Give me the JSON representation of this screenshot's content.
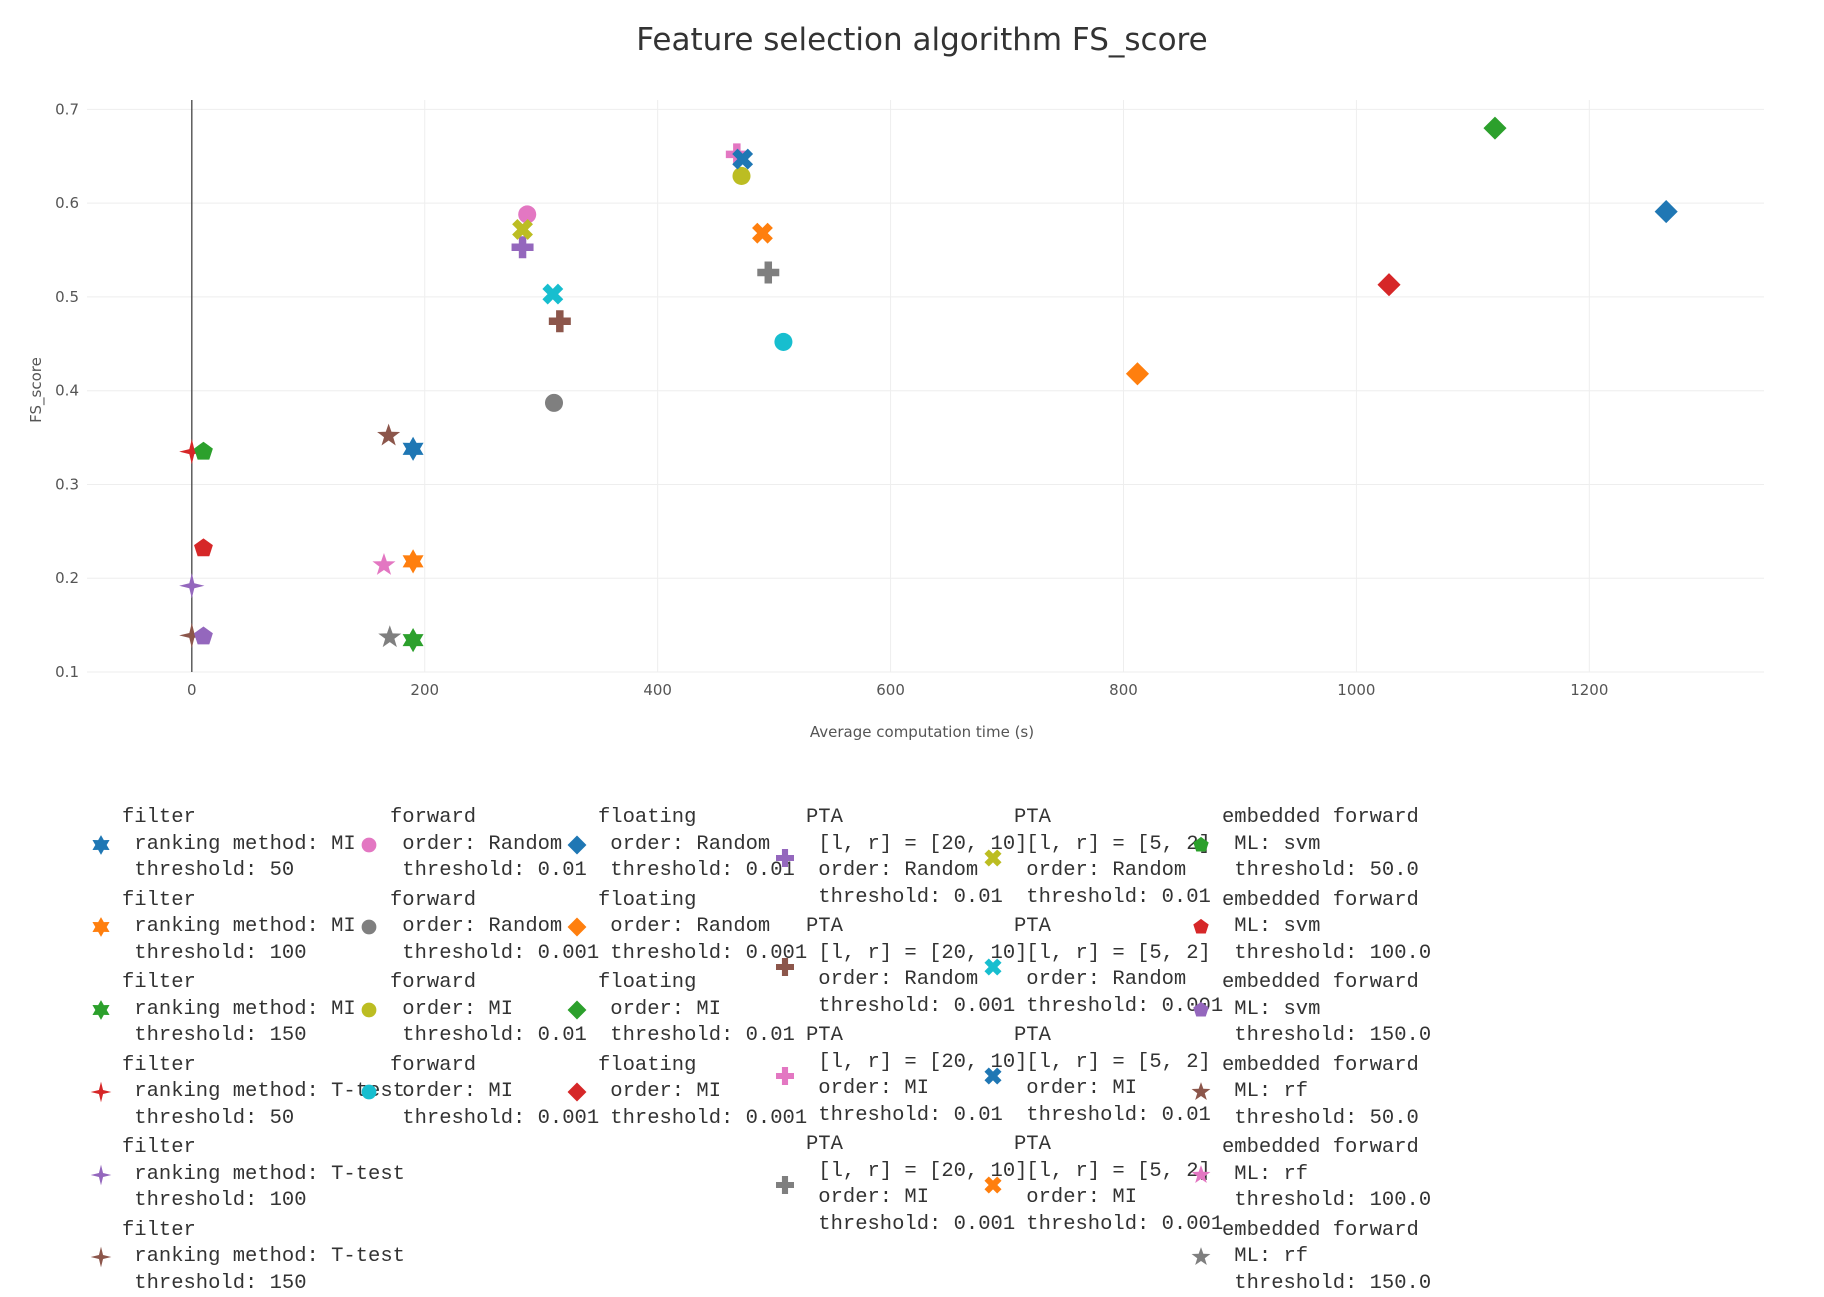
{
  "chart_data": {
    "type": "scatter",
    "title": "Feature selection algorithm FS_score",
    "xlabel": "Average computation time (s)",
    "ylabel": "FS_score",
    "xlim": [
      -90,
      1350
    ],
    "ylim": [
      0.1,
      0.71
    ],
    "x_ticks": [
      0,
      200,
      400,
      600,
      800,
      1000,
      1200
    ],
    "y_ticks": [
      0.1,
      0.2,
      0.3,
      0.4,
      0.5,
      0.6,
      0.7
    ],
    "grid": true,
    "zeroline_x": true,
    "legend_position": "bottom",
    "series": [
      {
        "name": "filter\n ranking method: MI\n threshold: 50",
        "symbol": "star-six",
        "color": "#1f77b4",
        "x": [
          190
        ],
        "y": [
          0.338
        ]
      },
      {
        "name": "filter\n ranking method: MI\n threshold: 100",
        "symbol": "star-six",
        "color": "#ff7f0e",
        "x": [
          190
        ],
        "y": [
          0.218
        ]
      },
      {
        "name": "filter\n ranking method: MI\n threshold: 150",
        "symbol": "star-six",
        "color": "#2ca02c",
        "x": [
          190
        ],
        "y": [
          0.134
        ]
      },
      {
        "name": "filter\n ranking method: T-test\n threshold: 50",
        "symbol": "star-four",
        "color": "#d62728",
        "x": [
          0
        ],
        "y": [
          0.335
        ]
      },
      {
        "name": "filter\n ranking method: T-test\n threshold: 100",
        "symbol": "star-four",
        "color": "#9467bd",
        "x": [
          0
        ],
        "y": [
          0.192
        ]
      },
      {
        "name": "filter\n ranking method: T-test\n threshold: 150",
        "symbol": "star-four",
        "color": "#8c564b",
        "x": [
          0
        ],
        "y": [
          0.139
        ]
      },
      {
        "name": "forward\n order: Random\n threshold: 0.01",
        "symbol": "circle",
        "color": "#e377c2",
        "x": [
          288
        ],
        "y": [
          0.588
        ]
      },
      {
        "name": "forward\n order: Random\n threshold: 0.001",
        "symbol": "circle",
        "color": "#7f7f7f",
        "x": [
          311
        ],
        "y": [
          0.387
        ]
      },
      {
        "name": "forward\n order: MI\n threshold: 0.01",
        "symbol": "circle",
        "color": "#bcbd22",
        "x": [
          472
        ],
        "y": [
          0.629
        ]
      },
      {
        "name": "forward\n order: MI\n threshold: 0.001",
        "symbol": "circle",
        "color": "#17becf",
        "x": [
          508
        ],
        "y": [
          0.452
        ]
      },
      {
        "name": "floating\n order: Random\n threshold: 0.01",
        "symbol": "diamond",
        "color": "#1f77b4",
        "x": [
          1266
        ],
        "y": [
          0.591
        ]
      },
      {
        "name": "floating\n order: Random\n threshold: 0.001",
        "symbol": "diamond",
        "color": "#ff7f0e",
        "x": [
          812
        ],
        "y": [
          0.418
        ]
      },
      {
        "name": "floating\n order: MI\n threshold: 0.01",
        "symbol": "diamond",
        "color": "#2ca02c",
        "x": [
          1119
        ],
        "y": [
          0.68
        ]
      },
      {
        "name": "floating\n order: MI\n threshold: 0.001",
        "symbol": "diamond",
        "color": "#d62728",
        "x": [
          1028
        ],
        "y": [
          0.513
        ]
      },
      {
        "name": "PTA\n [l, r] = [20, 10]\n order: Random\n threshold: 0.01",
        "symbol": "cross",
        "color": "#9467bd",
        "x": [
          284
        ],
        "y": [
          0.553
        ]
      },
      {
        "name": "PTA\n [l, r] = [20, 10]\n order: Random\n threshold: 0.001",
        "symbol": "cross",
        "color": "#8c564b",
        "x": [
          316
        ],
        "y": [
          0.474
        ]
      },
      {
        "name": "PTA\n [l, r] = [20, 10]\n order: MI\n threshold: 0.01",
        "symbol": "cross",
        "color": "#e377c2",
        "x": [
          468
        ],
        "y": [
          0.652
        ]
      },
      {
        "name": "PTA\n [l, r] = [20, 10]\n order: MI\n threshold: 0.001",
        "symbol": "cross",
        "color": "#7f7f7f",
        "x": [
          495
        ],
        "y": [
          0.526
        ]
      },
      {
        "name": "PTA\n [l, r] = [5, 2]\n order: Random\n threshold: 0.01",
        "symbol": "x",
        "color": "#bcbd22",
        "x": [
          284
        ],
        "y": [
          0.572
        ]
      },
      {
        "name": "PTA\n [l, r] = [5, 2]\n order: Random\n threshold: 0.001",
        "symbol": "x",
        "color": "#17becf",
        "x": [
          310
        ],
        "y": [
          0.503
        ]
      },
      {
        "name": "PTA\n [l, r] = [5, 2]\n order: MI\n threshold: 0.01",
        "symbol": "x",
        "color": "#1f77b4",
        "x": [
          473
        ],
        "y": [
          0.647
        ]
      },
      {
        "name": "PTA\n [l, r] = [5, 2]\n order: MI\n threshold: 0.001",
        "symbol": "x",
        "color": "#ff7f0e",
        "x": [
          490
        ],
        "y": [
          0.568
        ]
      },
      {
        "name": "embedded forward\n ML: svm\n threshold: 50.0",
        "symbol": "pentagon",
        "color": "#2ca02c",
        "x": [
          10
        ],
        "y": [
          0.335
        ]
      },
      {
        "name": "embedded forward\n ML: svm\n threshold: 100.0",
        "symbol": "pentagon",
        "color": "#d62728",
        "x": [
          10
        ],
        "y": [
          0.232
        ]
      },
      {
        "name": "embedded forward\n ML: svm\n threshold: 150.0",
        "symbol": "pentagon",
        "color": "#9467bd",
        "x": [
          10
        ],
        "y": [
          0.138
        ]
      },
      {
        "name": "embedded forward\n ML: rf\n threshold: 50.0",
        "symbol": "star",
        "color": "#8c564b",
        "x": [
          169
        ],
        "y": [
          0.352
        ]
      },
      {
        "name": "embedded forward\n ML: rf\n threshold: 100.0",
        "symbol": "star",
        "color": "#e377c2",
        "x": [
          165
        ],
        "y": [
          0.214
        ]
      },
      {
        "name": "embedded forward\n ML: rf\n threshold: 150.0",
        "symbol": "star",
        "color": "#7f7f7f",
        "x": [
          170
        ],
        "y": [
          0.137
        ]
      }
    ]
  }
}
